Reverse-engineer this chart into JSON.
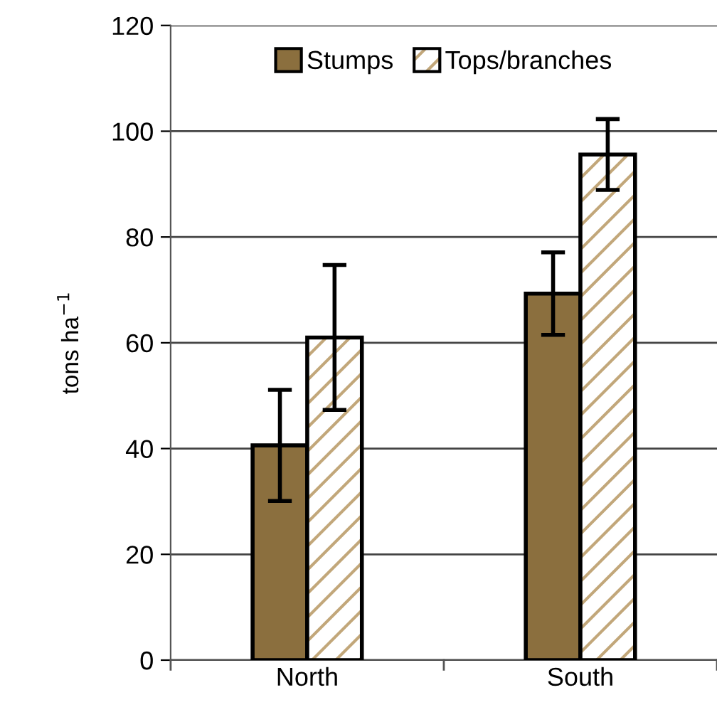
{
  "chart_data": {
    "type": "bar",
    "ylabel": "tons ha$^{−1}$",
    "categories": [
      "North",
      "South"
    ],
    "series": [
      {
        "name": "Stumps",
        "color": "#8b6f3e",
        "values": [
          40.6,
          69.3
        ],
        "errors": [
          10.5,
          7.8
        ]
      },
      {
        "name": "Tops/branches",
        "color": "#ffffff",
        "values": [
          61.0,
          95.6
        ],
        "errors": [
          13.7,
          6.7
        ]
      }
    ],
    "ylim": [
      0,
      120
    ],
    "yticks": [
      0,
      20,
      40,
      60,
      80,
      100,
      120
    ],
    "grid": "y",
    "legend": "top"
  }
}
